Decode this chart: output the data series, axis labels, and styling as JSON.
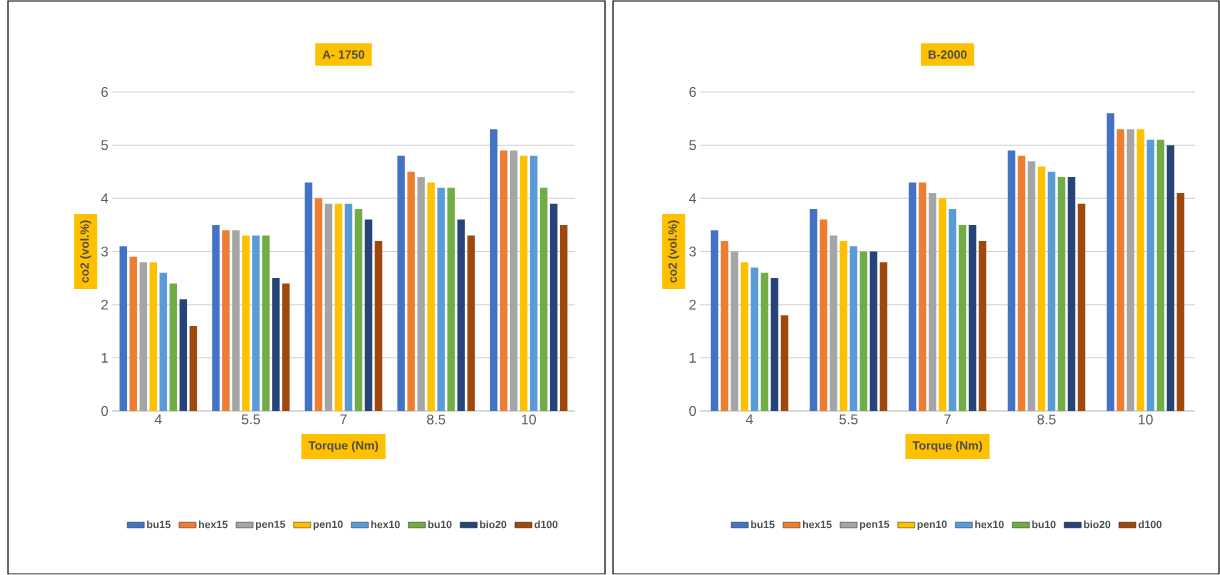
{
  "chart_data": [
    {
      "type": "bar",
      "title": "A-   1750",
      "xlabel": "Torque (Nm)",
      "ylabel": "co2 (vol.%)",
      "categories": [
        "4",
        "5.5",
        "7",
        "8.5",
        "10"
      ],
      "ylim": [
        0,
        6
      ],
      "yticks": [
        0,
        1,
        2,
        3,
        4,
        5,
        6
      ],
      "grid": "y",
      "legend": "bottom",
      "series": [
        {
          "name": "bu15",
          "color": "#4472c4",
          "values": [
            3.1,
            3.5,
            4.3,
            4.8,
            5.3
          ]
        },
        {
          "name": "hex15",
          "color": "#ed7d31",
          "values": [
            2.9,
            3.4,
            4.0,
            4.5,
            4.9
          ]
        },
        {
          "name": "pen15",
          "color": "#a5a5a5",
          "values": [
            2.8,
            3.4,
            3.9,
            4.4,
            4.9
          ]
        },
        {
          "name": "pen10",
          "color": "#ffc000",
          "values": [
            2.8,
            3.3,
            3.9,
            4.3,
            4.8
          ]
        },
        {
          "name": "hex10",
          "color": "#5b9bd5",
          "values": [
            2.6,
            3.3,
            3.9,
            4.2,
            4.8
          ]
        },
        {
          "name": "bu10",
          "color": "#70ad47",
          "values": [
            2.4,
            3.3,
            3.8,
            4.2,
            4.2
          ]
        },
        {
          "name": "bio20",
          "color": "#264478",
          "values": [
            2.1,
            2.5,
            3.6,
            3.6,
            3.9
          ]
        },
        {
          "name": "d100",
          "color": "#9e480e",
          "values": [
            1.6,
            2.4,
            3.2,
            3.3,
            3.5
          ]
        }
      ]
    },
    {
      "type": "bar",
      "title": "B-2000",
      "xlabel": "Torque (Nm)",
      "ylabel": "co2 (vol.%)",
      "categories": [
        "4",
        "5.5",
        "7",
        "8.5",
        "10"
      ],
      "ylim": [
        0,
        6
      ],
      "yticks": [
        0,
        1,
        2,
        3,
        4,
        5,
        6
      ],
      "grid": "y",
      "legend": "bottom",
      "series": [
        {
          "name": "bu15",
          "color": "#4472c4",
          "values": [
            3.4,
            3.8,
            4.3,
            4.9,
            5.6
          ]
        },
        {
          "name": "hex15",
          "color": "#ed7d31",
          "values": [
            3.2,
            3.6,
            4.3,
            4.8,
            5.3
          ]
        },
        {
          "name": "pen15",
          "color": "#a5a5a5",
          "values": [
            3.0,
            3.3,
            4.1,
            4.7,
            5.3
          ]
        },
        {
          "name": "pen10",
          "color": "#ffc000",
          "values": [
            2.8,
            3.2,
            4.0,
            4.6,
            5.3
          ]
        },
        {
          "name": "hex10",
          "color": "#5b9bd5",
          "values": [
            2.7,
            3.1,
            3.8,
            4.5,
            5.1
          ]
        },
        {
          "name": "bu10",
          "color": "#70ad47",
          "values": [
            2.6,
            3.0,
            3.5,
            4.4,
            5.1
          ]
        },
        {
          "name": "bio20",
          "color": "#264478",
          "values": [
            2.5,
            3.0,
            3.5,
            4.4,
            5.0
          ]
        },
        {
          "name": "d100",
          "color": "#9e480e",
          "values": [
            1.8,
            2.8,
            3.2,
            3.9,
            4.1
          ]
        }
      ]
    }
  ]
}
